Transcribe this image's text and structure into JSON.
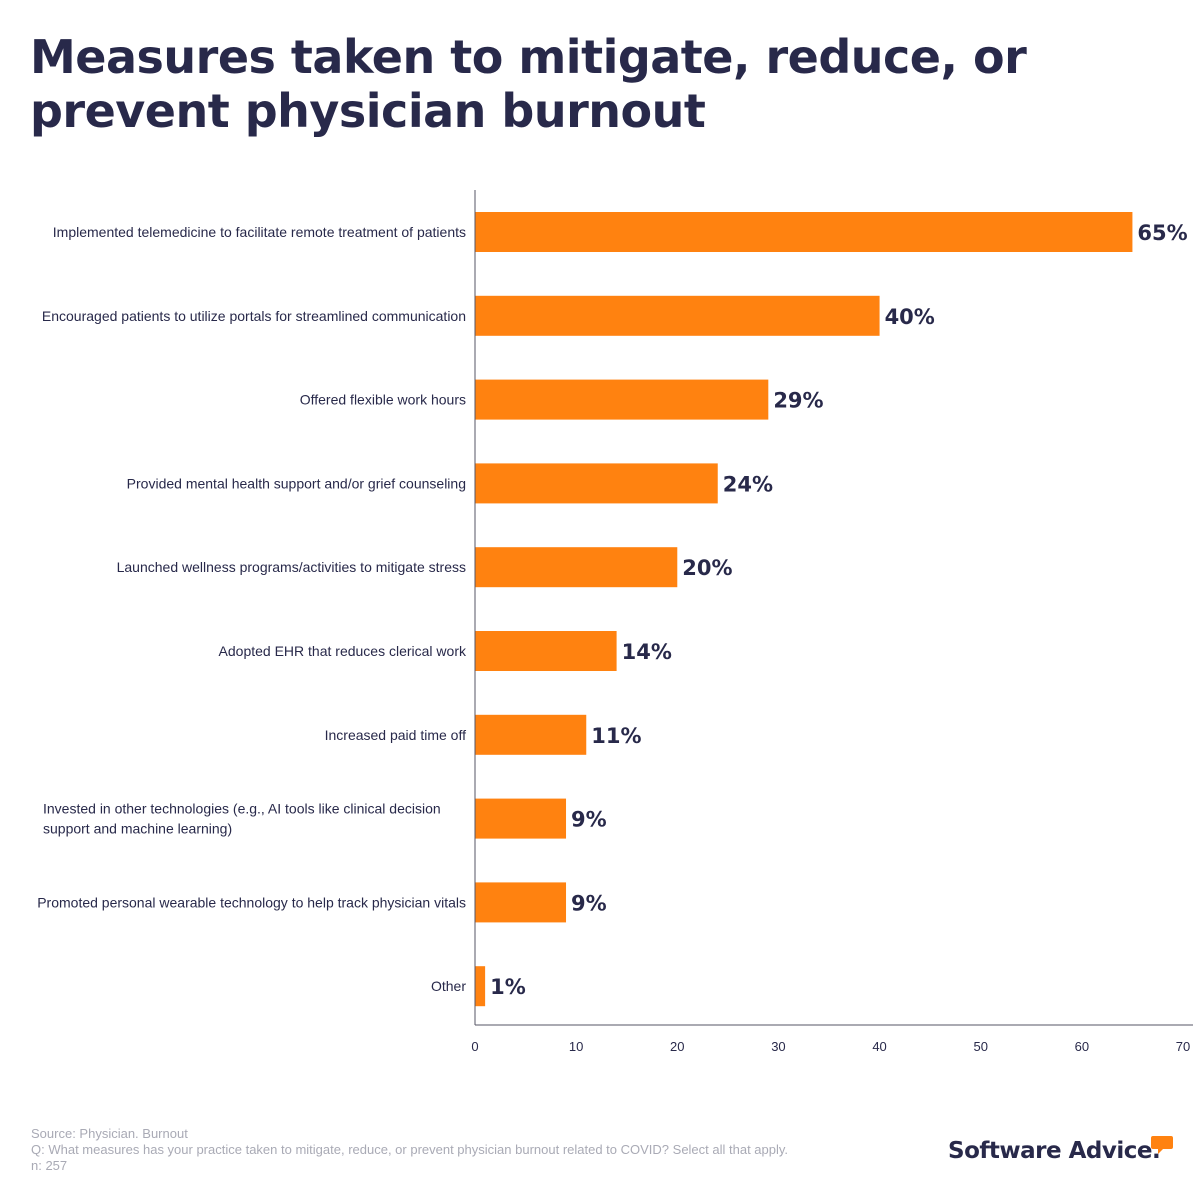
{
  "title": "Measures taken to mitigate, reduce, or prevent physician burnout",
  "colors": {
    "bar": "#ff8210",
    "text": "#28294a",
    "muted": "#a9aab5",
    "axis": "#555566"
  },
  "chart_data": {
    "type": "bar",
    "orientation": "horizontal",
    "title": "Measures taken to mitigate, reduce, or prevent physician burnout",
    "xlabel": "",
    "ylabel": "",
    "xlim": [
      0,
      70
    ],
    "ticks": [
      0,
      10,
      20,
      30,
      40,
      50,
      60,
      70
    ],
    "grid": false,
    "categories": [
      [
        "Implemented telemedicine to facilitate remote treatment of patients"
      ],
      [
        "Encouraged patients to utilize portals for streamlined communication"
      ],
      [
        "Offered flexible work hours"
      ],
      [
        "Provided mental health support and/or grief counseling"
      ],
      [
        "Launched wellness programs/activities to mitigate stress"
      ],
      [
        "Adopted EHR that reduces clerical work"
      ],
      [
        "Increased paid time off"
      ],
      [
        "Invested in other technologies (e.g., AI tools like clinical decision",
        "support and machine learning)"
      ],
      [
        "Promoted personal wearable technology to help track physician vitals"
      ],
      [
        "Other"
      ]
    ],
    "values": [
      65,
      40,
      29,
      24,
      20,
      14,
      11,
      9,
      9,
      1
    ],
    "value_labels": [
      "65%",
      "40%",
      "29%",
      "24%",
      "20%",
      "14%",
      "11%",
      "9%",
      "9%",
      "1%"
    ]
  },
  "footer": {
    "source": "Source: Physician. Burnout",
    "question": "Q: What measures has your practice taken to mitigate, reduce, or prevent physician burnout related to COVID? Select all that apply.",
    "n": "n: 257"
  },
  "logo": {
    "text": "Software Advice."
  }
}
